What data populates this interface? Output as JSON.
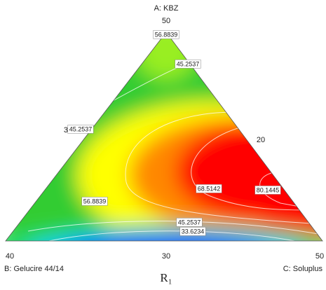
{
  "chart_data": {
    "type": "ternary-contour",
    "title": "R₁",
    "axes": {
      "a": {
        "label": "A: KBZ",
        "ticks": [
          50,
          30
        ]
      },
      "b": {
        "label": "B: Gelucire 44/14",
        "ticks": [
          40,
          30
        ]
      },
      "c": {
        "label": "C: Soluplus",
        "ticks": [
          50,
          20
        ]
      }
    },
    "contour_levels": [
      33.6234,
      45.2537,
      56.8839,
      68.5142,
      80.1445
    ]
  }
}
